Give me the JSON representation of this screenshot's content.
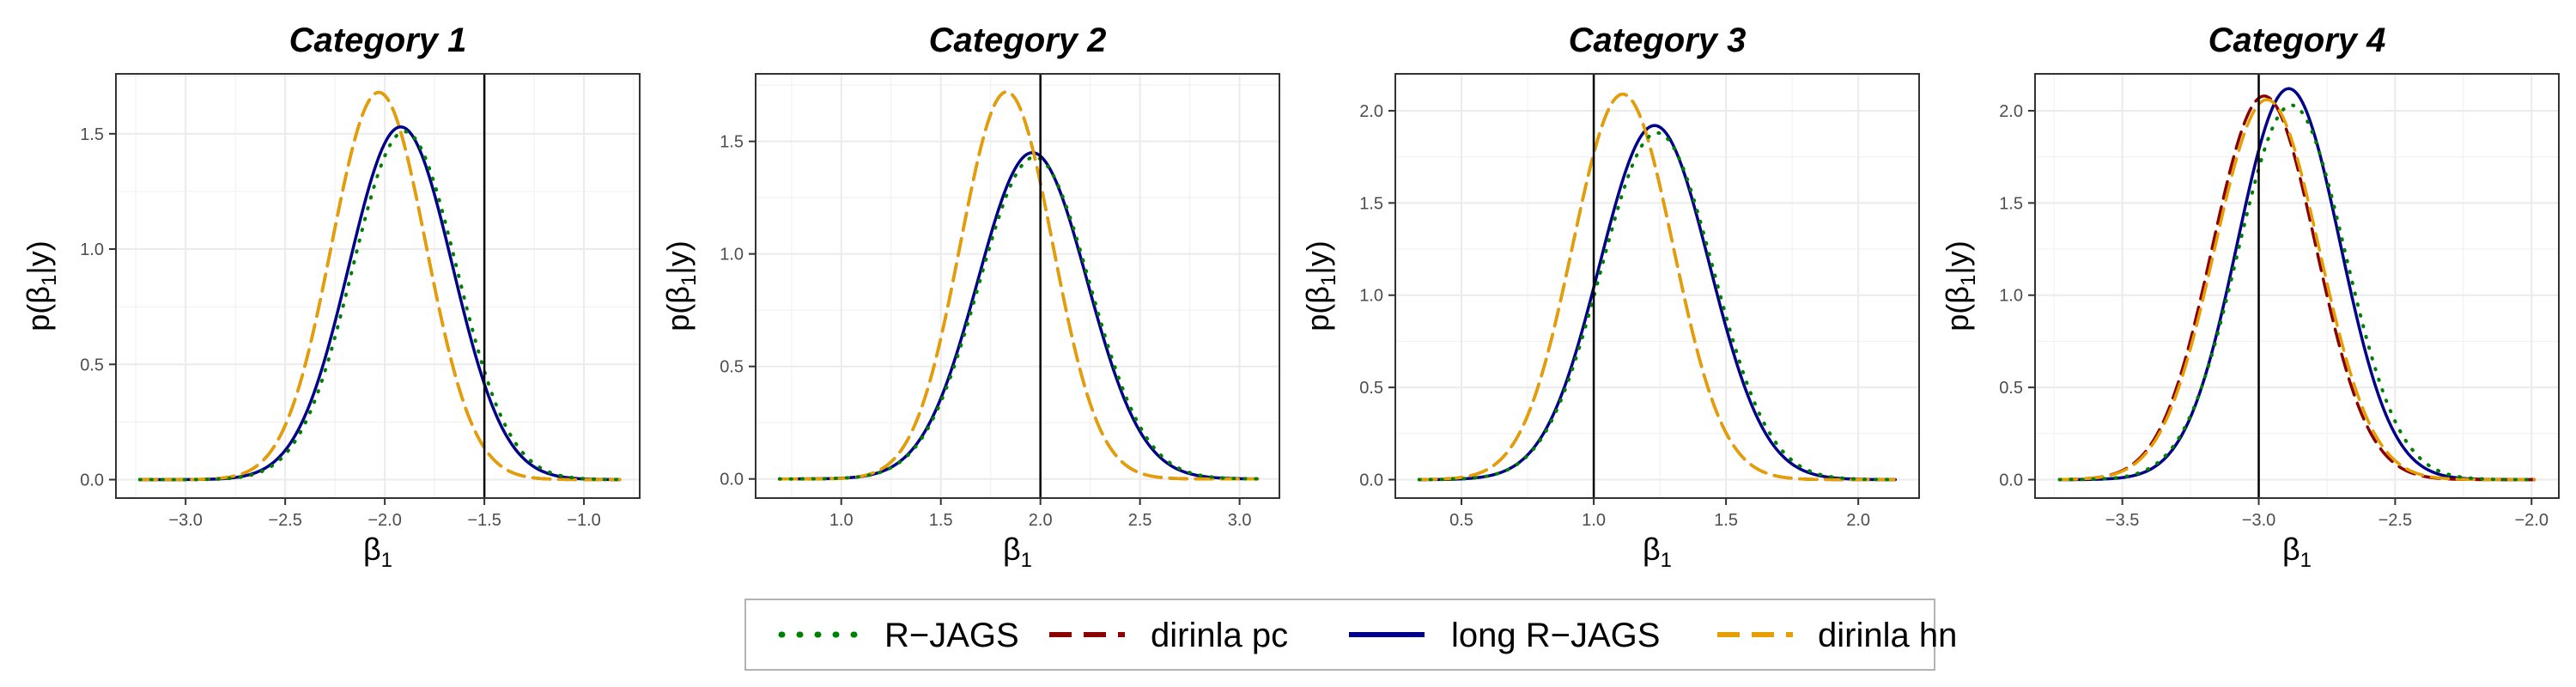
{
  "chart_data": {
    "type": "line",
    "series_styles": [
      {
        "name": "R−JAGS",
        "color": "#008000",
        "dash": "dotted"
      },
      {
        "name": "dirinla pc",
        "color": "#8B0000",
        "dash": "dashed"
      },
      {
        "name": "long R−JAGS",
        "color": "#00008B",
        "dash": "solid"
      },
      {
        "name": "dirinla hn",
        "color": "#E69F00",
        "dash": "dashed"
      }
    ],
    "legend_position": "bottom",
    "grid": true,
    "panels": [
      {
        "title": "Category 1",
        "xlabel": "β",
        "xlabel_sub": "1",
        "ylabel": "p(β",
        "ylabel_sub": "1",
        "ylabel_end": "|y)",
        "xlim": [
          -3.35,
          -0.72
        ],
        "ylim": [
          -0.08,
          1.76
        ],
        "xticks": [
          -3.0,
          -2.5,
          -2.0,
          -1.5,
          -1.0
        ],
        "xtick_labels": [
          "−3.0",
          "−2.5",
          "−2.0",
          "−1.5",
          "−1.0"
        ],
        "yticks": [
          0.0,
          0.5,
          1.0,
          1.5
        ],
        "ytick_labels": [
          "0.0",
          "0.5",
          "1.0",
          "1.5"
        ],
        "vline": -1.5,
        "domain": [
          -3.23,
          -0.82
        ],
        "series": [
          {
            "name": "R−JAGS",
            "mean": -1.9,
            "sd": 0.262,
            "peak": 1.51
          },
          {
            "name": "dirinla pc",
            "mean": -2.03,
            "sd": 0.237,
            "peak": 1.68
          },
          {
            "name": "long R−JAGS",
            "mean": -1.92,
            "sd": 0.26,
            "peak": 1.53
          },
          {
            "name": "dirinla hn",
            "mean": -2.03,
            "sd": 0.237,
            "peak": 1.68
          }
        ]
      },
      {
        "title": "Category 2",
        "xlabel": "β",
        "xlabel_sub": "1",
        "ylabel": "p(β",
        "ylabel_sub": "1",
        "ylabel_end": "|y)",
        "xlim": [
          0.57,
          3.2
        ],
        "ylim": [
          -0.085,
          1.8
        ],
        "xticks": [
          1.0,
          1.5,
          2.0,
          2.5,
          3.0
        ],
        "xtick_labels": [
          "1.0",
          "1.5",
          "2.0",
          "2.5",
          "3.0"
        ],
        "yticks": [
          0.0,
          0.5,
          1.0,
          1.5
        ],
        "ytick_labels": [
          "0.0",
          "0.5",
          "1.0",
          "1.5"
        ],
        "vline": 2.0,
        "domain": [
          0.69,
          3.09
        ],
        "series": [
          {
            "name": "R−JAGS",
            "mean": 1.97,
            "sd": 0.278,
            "peak": 1.43
          },
          {
            "name": "dirinla pc",
            "mean": 1.83,
            "sd": 0.232,
            "peak": 1.72
          },
          {
            "name": "long R−JAGS",
            "mean": 1.96,
            "sd": 0.275,
            "peak": 1.45
          },
          {
            "name": "dirinla hn",
            "mean": 1.83,
            "sd": 0.232,
            "peak": 1.72
          }
        ]
      },
      {
        "title": "Category 3",
        "xlabel": "β",
        "xlabel_sub": "1",
        "ylabel": "p(β",
        "ylabel_sub": "1",
        "ylabel_end": "|y)",
        "xlim": [
          0.25,
          2.23
        ],
        "ylim": [
          -0.1,
          2.2
        ],
        "xticks": [
          0.5,
          1.0,
          1.5,
          2.0
        ],
        "xtick_labels": [
          "0.5",
          "1.0",
          "1.5",
          "2.0"
        ],
        "yticks": [
          0.0,
          0.5,
          1.0,
          1.5,
          2.0
        ],
        "ytick_labels": [
          "0.0",
          "0.5",
          "1.0",
          "1.5",
          "2.0"
        ],
        "vline": 1.0,
        "domain": [
          0.34,
          2.14
        ],
        "series": [
          {
            "name": "R−JAGS",
            "mean": 1.24,
            "sd": 0.212,
            "peak": 1.88
          },
          {
            "name": "dirinla pc",
            "mean": 1.11,
            "sd": 0.19,
            "peak": 2.09
          },
          {
            "name": "long R−JAGS",
            "mean": 1.23,
            "sd": 0.208,
            "peak": 1.92
          },
          {
            "name": "dirinla hn",
            "mean": 1.11,
            "sd": 0.19,
            "peak": 2.09
          }
        ]
      },
      {
        "title": "Category 4",
        "xlabel": "β",
        "xlabel_sub": "1",
        "ylabel": "p(β",
        "ylabel_sub": "1",
        "ylabel_end": "|y)",
        "xlim": [
          -3.82,
          -1.9
        ],
        "ylim": [
          -0.1,
          2.2
        ],
        "xticks": [
          -3.5,
          -3.0,
          -2.5,
          -2.0
        ],
        "xtick_labels": [
          "−3.5",
          "−3.0",
          "−2.5",
          "−2.0"
        ],
        "yticks": [
          0.0,
          0.5,
          1.0,
          1.5,
          2.0
        ],
        "ytick_labels": [
          "0.0",
          "0.5",
          "1.0",
          "1.5",
          "2.0"
        ],
        "vline": -3.0,
        "domain": [
          -3.73,
          -1.99
        ],
        "series": [
          {
            "name": "R−JAGS",
            "mean": -2.88,
            "sd": 0.197,
            "peak": 2.03
          },
          {
            "name": "dirinla pc",
            "mean": -2.98,
            "sd": 0.19,
            "peak": 2.08
          },
          {
            "name": "long R−JAGS",
            "mean": -2.89,
            "sd": 0.188,
            "peak": 2.12
          },
          {
            "name": "dirinla hn",
            "mean": -2.97,
            "sd": 0.192,
            "peak": 2.06
          }
        ]
      }
    ]
  }
}
